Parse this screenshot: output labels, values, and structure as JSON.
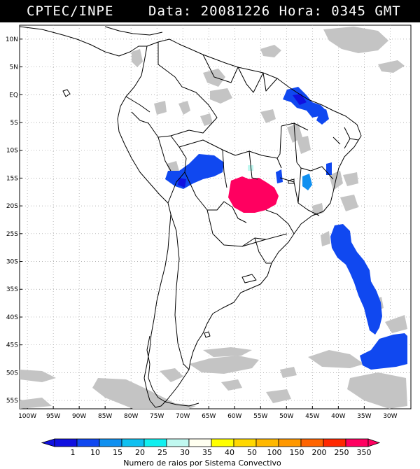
{
  "header": {
    "source": "CPTEC/INPE",
    "data_hora": "Data: 20081226 Hora: 0345 GMT"
  },
  "map": {
    "lat_ticks": [
      {
        "label": "10N",
        "lat": 10
      },
      {
        "label": "5N",
        "lat": 5
      },
      {
        "label": "EQ",
        "lat": 0
      },
      {
        "label": "5S",
        "lat": -5
      },
      {
        "label": "10S",
        "lat": -10
      },
      {
        "label": "15S",
        "lat": -15
      },
      {
        "label": "20S",
        "lat": -20
      },
      {
        "label": "25S",
        "lat": -25
      },
      {
        "label": "30S",
        "lat": -30
      },
      {
        "label": "35S",
        "lat": -35
      },
      {
        "label": "40S",
        "lat": -40
      },
      {
        "label": "45S",
        "lat": -45
      },
      {
        "label": "50S",
        "lat": -50
      },
      {
        "label": "55S",
        "lat": -55
      }
    ],
    "lon_ticks": [
      {
        "label": "100W",
        "lon": -100
      },
      {
        "label": "95W",
        "lon": -95
      },
      {
        "label": "90W",
        "lon": -90
      },
      {
        "label": "85W",
        "lon": -85
      },
      {
        "label": "80W",
        "lon": -80
      },
      {
        "label": "75W",
        "lon": -75
      },
      {
        "label": "70W",
        "lon": -70
      },
      {
        "label": "65W",
        "lon": -65
      },
      {
        "label": "60W",
        "lon": -60
      },
      {
        "label": "55W",
        "lon": -55
      },
      {
        "label": "50W",
        "lon": -50
      },
      {
        "label": "45W",
        "lon": -45
      },
      {
        "label": "40W",
        "lon": -40
      },
      {
        "label": "35W",
        "lon": -35
      },
      {
        "label": "30W",
        "lon": -30
      }
    ],
    "gridlines": "dotted"
  },
  "legend": {
    "title": "Numero de raios por Sistema Convectivo",
    "classes": [
      {
        "label": "1",
        "color": "#1010e0"
      },
      {
        "label": "10",
        "color": "#1048f0"
      },
      {
        "label": "15",
        "color": "#1090f0"
      },
      {
        "label": "20",
        "color": "#10c0f0"
      },
      {
        "label": "25",
        "color": "#10f0f0"
      },
      {
        "label": "30",
        "color": "#c0f8f0"
      },
      {
        "label": "35",
        "color": "#fffff0"
      },
      {
        "label": "40",
        "color": "#ffff00"
      },
      {
        "label": "50",
        "color": "#ffd800"
      },
      {
        "label": "100",
        "color": "#ffb800"
      },
      {
        "label": "150",
        "color": "#ff9800"
      },
      {
        "label": "200",
        "color": "#ff6400"
      },
      {
        "label": "250",
        "color": "#ff2800"
      },
      {
        "label": "350",
        "color": "#ff0060"
      }
    ]
  },
  "colors": {
    "cloud": "#c4c4c4",
    "coast": "#000000",
    "grid": "#9a9a9a"
  }
}
